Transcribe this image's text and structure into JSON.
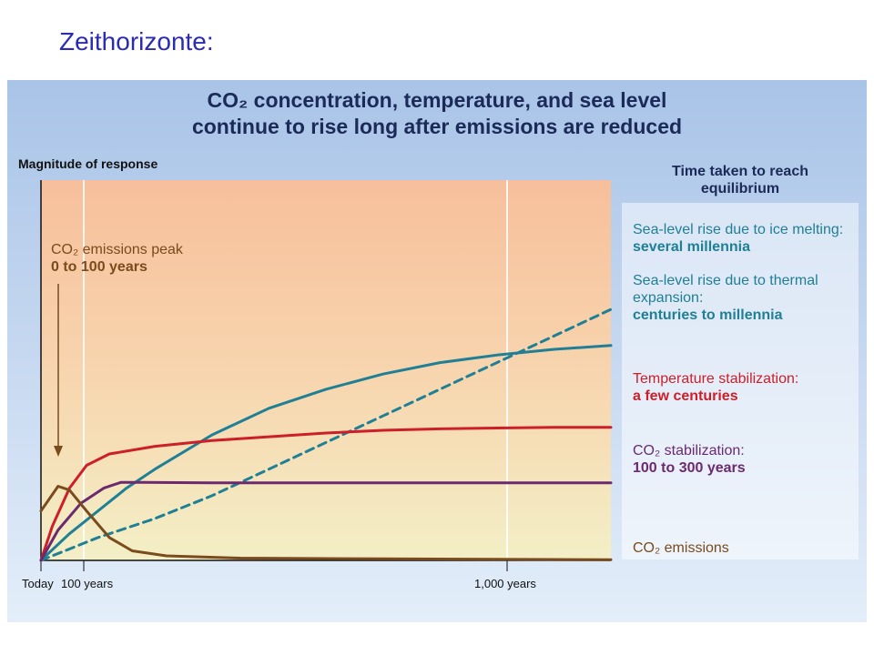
{
  "slide": {
    "title": "Zeithorizonte:"
  },
  "chart_data": {
    "type": "line",
    "title": "CO₂ concentration, temperature, and sea level continue to rise long after emissions are reduced",
    "title_lines": [
      "CO₂ concentration, temperature, and sea level",
      "continue to rise long after emissions are reduced"
    ],
    "ylabel": "Magnitude of response",
    "x_ticks": [
      "Today",
      "100 years",
      "1,000 years"
    ],
    "grid": false,
    "right_header": [
      "Time taken to reach",
      "equilibrium"
    ],
    "annotation": {
      "text": "CO₂ emissions peak",
      "bold": "0 to 100 years"
    },
    "series": [
      {
        "name": "Sea-level rise due to ice melting:",
        "period": "several millennia",
        "color": "#1f7f95",
        "style": "dashed",
        "values": [
          [
            0,
            0.0
          ],
          [
            0.1,
            0.06
          ],
          [
            0.2,
            0.11
          ],
          [
            0.3,
            0.17
          ],
          [
            0.4,
            0.24
          ],
          [
            0.5,
            0.31
          ],
          [
            0.6,
            0.38
          ],
          [
            0.7,
            0.45
          ],
          [
            0.8,
            0.52
          ],
          [
            0.9,
            0.59
          ],
          [
            1.0,
            0.66
          ]
        ]
      },
      {
        "name": "Sea-level rise due to thermal expansion:",
        "period": "centuries to millennia",
        "color": "#1f7f95",
        "style": "solid",
        "values": [
          [
            0,
            0.0
          ],
          [
            0.05,
            0.07
          ],
          [
            0.1,
            0.13
          ],
          [
            0.15,
            0.19
          ],
          [
            0.2,
            0.24
          ],
          [
            0.3,
            0.33
          ],
          [
            0.4,
            0.4
          ],
          [
            0.5,
            0.45
          ],
          [
            0.6,
            0.49
          ],
          [
            0.7,
            0.52
          ],
          [
            0.8,
            0.54
          ],
          [
            0.9,
            0.555
          ],
          [
            1.0,
            0.565
          ]
        ]
      },
      {
        "name": "Temperature stabilization:",
        "period": "a few centuries",
        "color": "#cc1f2a",
        "style": "solid",
        "values": [
          [
            0,
            0.0
          ],
          [
            0.02,
            0.09
          ],
          [
            0.05,
            0.19
          ],
          [
            0.08,
            0.25
          ],
          [
            0.12,
            0.28
          ],
          [
            0.2,
            0.3
          ],
          [
            0.3,
            0.315
          ],
          [
            0.4,
            0.325
          ],
          [
            0.5,
            0.335
          ],
          [
            0.6,
            0.342
          ],
          [
            0.7,
            0.346
          ],
          [
            0.8,
            0.348
          ],
          [
            0.9,
            0.35
          ],
          [
            1.0,
            0.35
          ]
        ]
      },
      {
        "name": "CO₂ stabilization:",
        "period": "100 to 300 years",
        "color": "#6b2a70",
        "style": "solid",
        "values": [
          [
            0,
            0.0
          ],
          [
            0.03,
            0.08
          ],
          [
            0.07,
            0.15
          ],
          [
            0.11,
            0.19
          ],
          [
            0.14,
            0.205
          ],
          [
            0.18,
            0.205
          ],
          [
            0.3,
            0.204
          ],
          [
            0.5,
            0.204
          ],
          [
            0.7,
            0.204
          ],
          [
            1.0,
            0.204
          ]
        ]
      },
      {
        "name": "CO₂ emissions",
        "period": "",
        "color": "#7a4b1c",
        "style": "solid",
        "values": [
          [
            0,
            0.13
          ],
          [
            0.03,
            0.195
          ],
          [
            0.05,
            0.185
          ],
          [
            0.08,
            0.13
          ],
          [
            0.12,
            0.06
          ],
          [
            0.16,
            0.025
          ],
          [
            0.22,
            0.012
          ],
          [
            0.35,
            0.006
          ],
          [
            0.6,
            0.004
          ],
          [
            1.0,
            0.002
          ]
        ]
      }
    ]
  }
}
